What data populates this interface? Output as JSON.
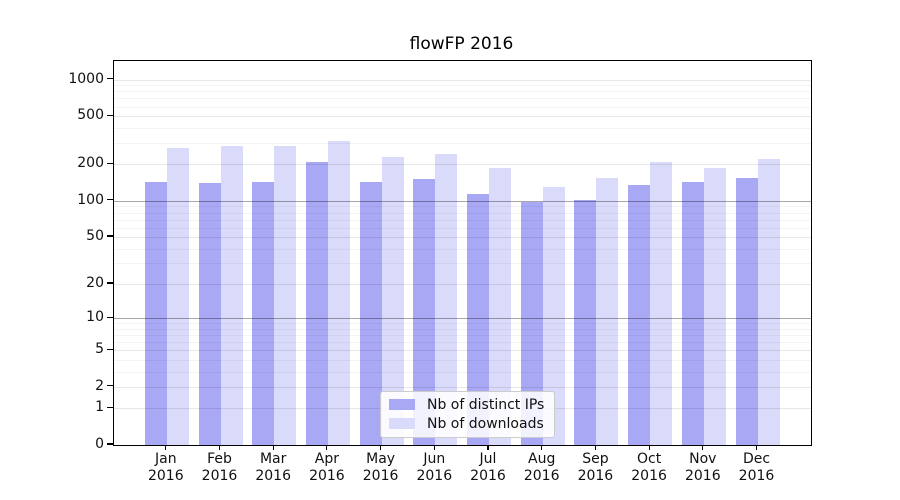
{
  "chart_data": {
    "type": "bar",
    "title": "flowFP 2016",
    "categories": [
      "Jan",
      "Feb",
      "Mar",
      "Apr",
      "May",
      "Jun",
      "Jul",
      "Aug",
      "Sep",
      "Oct",
      "Nov",
      "Dec"
    ],
    "year_label": "2016",
    "y_ticks": [
      0,
      1,
      2,
      5,
      10,
      20,
      50,
      100,
      200,
      500,
      1000
    ],
    "y_scale": "log10(value+1)",
    "ylim": [
      0,
      1448
    ],
    "grid": "on",
    "legend_position": "inside-bottom-center",
    "series": [
      {
        "name": "Nb of distinct IPs",
        "color": "#a8a8f5",
        "values": [
          144,
          140,
          143,
          211,
          144,
          153,
          114,
          97,
          102,
          135,
          142,
          156
        ]
      },
      {
        "name": "Nb of downloads",
        "color": "#dadafa",
        "values": [
          272,
          284,
          286,
          313,
          231,
          243,
          188,
          130,
          155,
          208,
          188,
          224
        ]
      }
    ]
  }
}
